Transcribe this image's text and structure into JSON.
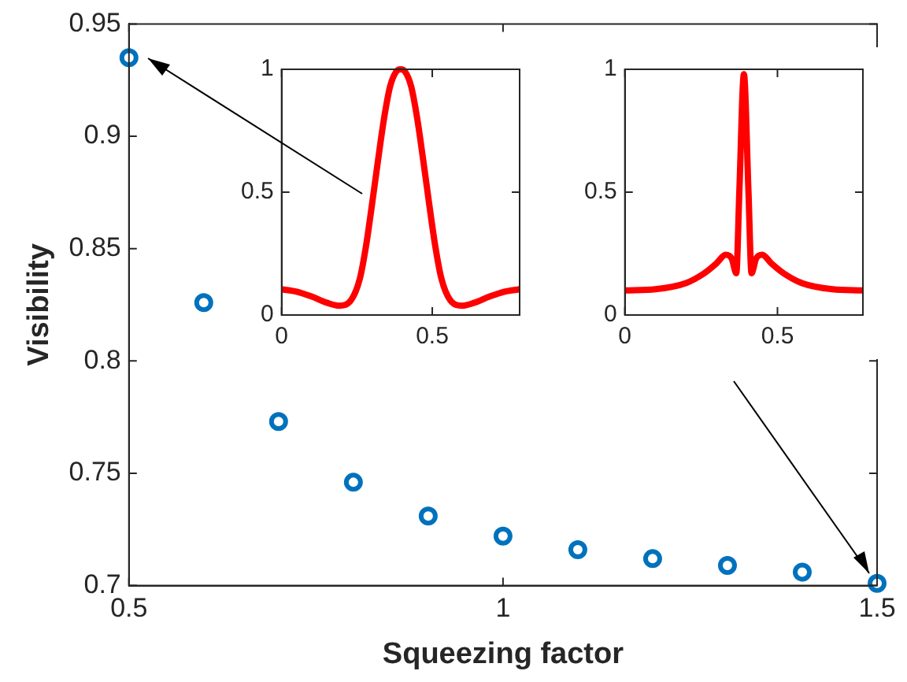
{
  "chart_data": [
    {
      "type": "scatter",
      "xlabel": "Squeezing factor",
      "ylabel": "Visibility",
      "x": [
        0.5,
        0.6,
        0.7,
        0.8,
        0.9,
        1.0,
        1.1,
        1.2,
        1.3,
        1.4,
        1.5
      ],
      "values": [
        0.935,
        0.826,
        0.773,
        0.746,
        0.731,
        0.722,
        0.716,
        0.712,
        0.709,
        0.706,
        0.701
      ],
      "color": "#0072bd",
      "marker": "circle",
      "xlim": [
        0.5,
        1.5
      ],
      "xticks": [
        0.5,
        1,
        1.5
      ],
      "ylim": [
        0.7,
        0.95
      ],
      "yticks": [
        0.7,
        0.75,
        0.8,
        0.85,
        0.9,
        0.95
      ]
    },
    {
      "type": "line",
      "x": [
        0,
        0.05,
        0.1,
        0.15,
        0.19,
        0.23,
        0.26,
        0.28,
        0.3,
        0.32,
        0.34,
        0.36,
        0.38,
        0.395,
        0.41,
        0.43,
        0.45,
        0.47,
        0.49,
        0.51,
        0.53,
        0.56,
        0.6,
        0.64,
        0.69,
        0.74,
        0.79
      ],
      "values": [
        0.105,
        0.095,
        0.075,
        0.05,
        0.038,
        0.06,
        0.15,
        0.28,
        0.45,
        0.63,
        0.8,
        0.93,
        0.99,
        1.0,
        0.99,
        0.93,
        0.8,
        0.63,
        0.45,
        0.28,
        0.15,
        0.06,
        0.038,
        0.05,
        0.075,
        0.095,
        0.105
      ],
      "color": "#ff0000",
      "marker": "none",
      "xlim": [
        0,
        0.79
      ],
      "xticks": [
        0,
        0.5
      ],
      "ylim": [
        0,
        1
      ],
      "yticks": [
        0,
        0.5,
        1
      ]
    },
    {
      "type": "line",
      "x": [
        0,
        0.1,
        0.2,
        0.26,
        0.3,
        0.33,
        0.35,
        0.365,
        0.375,
        0.39,
        0.405,
        0.415,
        0.43,
        0.45,
        0.48,
        0.52,
        0.58,
        0.68,
        0.78
      ],
      "values": [
        0.1,
        0.105,
        0.13,
        0.17,
        0.21,
        0.245,
        0.23,
        0.17,
        0.5,
        0.98,
        0.5,
        0.17,
        0.23,
        0.245,
        0.21,
        0.17,
        0.13,
        0.105,
        0.1
      ],
      "color": "#ff0000",
      "marker": "none",
      "xlim": [
        0,
        0.78
      ],
      "xticks": [
        0,
        0.5
      ],
      "ylim": [
        0,
        1
      ],
      "yticks": [
        0,
        0.5,
        1
      ]
    }
  ]
}
